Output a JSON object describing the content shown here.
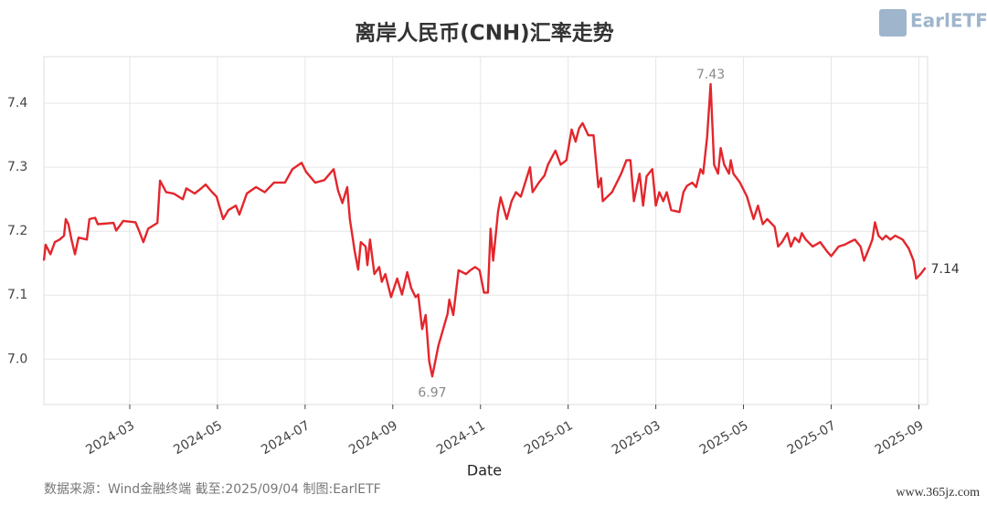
{
  "chart_data": {
    "type": "line",
    "title": "离岸人民币(CNH)汇率走势",
    "x_label": "Date",
    "footer": "数据来源：Wind金融终端 截至:2025/09/04 制图:EarlETF",
    "logo": "EarlETF",
    "watermark": "www.365jz.com",
    "color": "#e3262c",
    "grid": true,
    "xlim": [
      0.04,
      20.2
    ],
    "ylim": [
      6.929,
      7.473
    ],
    "xticks": [
      {
        "value": 2,
        "label": "2024-03"
      },
      {
        "value": 4,
        "label": "2024-05"
      },
      {
        "value": 6,
        "label": "2024-07"
      },
      {
        "value": 8,
        "label": "2024-09"
      },
      {
        "value": 10,
        "label": "2024-11"
      },
      {
        "value": 12,
        "label": "2025-01"
      },
      {
        "value": 14,
        "label": "2025-03"
      },
      {
        "value": 16,
        "label": "2025-05"
      },
      {
        "value": 18,
        "label": "2025-07"
      },
      {
        "value": 20,
        "label": "2025-09"
      }
    ],
    "yticks": [
      {
        "value": 7,
        "label": "7.0"
      },
      7.1,
      7.2,
      7.3,
      7.4
    ],
    "x": [
      0.04,
      0.08,
      0.19,
      0.29,
      0.4,
      0.5,
      0.54,
      0.6,
      0.67,
      0.75,
      0.83,
      1.02,
      1.08,
      1.21,
      1.27,
      1.63,
      1.69,
      1.85,
      2.13,
      2.21,
      2.31,
      2.42,
      2.63,
      2.69,
      2.83,
      3.0,
      3.21,
      3.29,
      3.48,
      3.63,
      3.73,
      3.88,
      3.98,
      4.13,
      4.25,
      4.42,
      4.5,
      4.67,
      4.88,
      5.08,
      5.29,
      5.54,
      5.71,
      5.92,
      6.02,
      6.23,
      6.44,
      6.65,
      6.75,
      6.85,
      6.96,
      7.02,
      7.13,
      7.21,
      7.27,
      7.38,
      7.42,
      7.48,
      7.58,
      7.69,
      7.75,
      7.83,
      7.96,
      8.1,
      8.21,
      8.33,
      8.42,
      8.52,
      8.58,
      8.67,
      8.75,
      8.83,
      8.9,
      9.04,
      9.25,
      9.29,
      9.38,
      9.5,
      9.67,
      9.77,
      9.88,
      9.98,
      10.08,
      10.17,
      10.23,
      10.29,
      10.4,
      10.46,
      10.6,
      10.71,
      10.81,
      10.92,
      11.02,
      11.13,
      11.19,
      11.33,
      11.46,
      11.54,
      11.71,
      11.83,
      11.96,
      12.08,
      12.17,
      12.25,
      12.33,
      12.46,
      12.58,
      12.69,
      12.75,
      12.79,
      13.0,
      13.21,
      13.33,
      13.42,
      13.5,
      13.63,
      13.71,
      13.79,
      13.92,
      14.0,
      14.08,
      14.17,
      14.25,
      14.35,
      14.54,
      14.63,
      14.71,
      14.83,
      14.92,
      15.02,
      15.08,
      15.17,
      15.25,
      15.33,
      15.42,
      15.48,
      15.56,
      15.67,
      15.71,
      15.77,
      15.92,
      16.08,
      16.23,
      16.33,
      16.44,
      16.54,
      16.71,
      16.79,
      16.88,
      17.0,
      17.08,
      17.17,
      17.27,
      17.33,
      17.42,
      17.58,
      17.75,
      17.9,
      18.0,
      18.17,
      18.31,
      18.42,
      18.54,
      18.67,
      18.75,
      18.88,
      18.94,
      19.0,
      19.08,
      19.17,
      19.25,
      19.35,
      19.46,
      19.63,
      19.77,
      19.88,
      19.94,
      20.04,
      20.15
    ],
    "values": [
      7.154,
      7.179,
      7.164,
      7.183,
      7.187,
      7.193,
      7.219,
      7.211,
      7.187,
      7.164,
      7.19,
      7.187,
      7.219,
      7.221,
      7.211,
      7.213,
      7.201,
      7.216,
      7.214,
      7.201,
      7.183,
      7.204,
      7.213,
      7.279,
      7.261,
      7.259,
      7.25,
      7.267,
      7.259,
      7.267,
      7.273,
      7.261,
      7.254,
      7.219,
      7.233,
      7.24,
      7.226,
      7.259,
      7.269,
      7.261,
      7.276,
      7.276,
      7.297,
      7.307,
      7.293,
      7.276,
      7.28,
      7.297,
      7.264,
      7.244,
      7.269,
      7.219,
      7.169,
      7.14,
      7.183,
      7.176,
      7.147,
      7.187,
      7.133,
      7.144,
      7.121,
      7.133,
      7.097,
      7.126,
      7.101,
      7.136,
      7.111,
      7.097,
      7.101,
      7.047,
      7.069,
      6.997,
      6.973,
      7.021,
      7.071,
      7.093,
      7.069,
      7.139,
      7.133,
      7.139,
      7.144,
      7.139,
      7.104,
      7.104,
      7.204,
      7.154,
      7.23,
      7.253,
      7.219,
      7.247,
      7.261,
      7.254,
      7.276,
      7.3,
      7.261,
      7.276,
      7.287,
      7.304,
      7.326,
      7.304,
      7.311,
      7.359,
      7.34,
      7.361,
      7.369,
      7.35,
      7.35,
      7.269,
      7.283,
      7.247,
      7.261,
      7.29,
      7.311,
      7.311,
      7.247,
      7.29,
      7.24,
      7.286,
      7.297,
      7.24,
      7.261,
      7.247,
      7.261,
      7.233,
      7.23,
      7.261,
      7.271,
      7.276,
      7.269,
      7.297,
      7.29,
      7.347,
      7.43,
      7.304,
      7.29,
      7.33,
      7.304,
      7.29,
      7.311,
      7.29,
      7.276,
      7.254,
      7.219,
      7.24,
      7.211,
      7.219,
      7.207,
      7.176,
      7.183,
      7.197,
      7.176,
      7.19,
      7.183,
      7.197,
      7.187,
      7.176,
      7.183,
      7.169,
      7.161,
      7.176,
      7.179,
      7.183,
      7.187,
      7.176,
      7.154,
      7.176,
      7.187,
      7.214,
      7.193,
      7.187,
      7.193,
      7.187,
      7.193,
      7.187,
      7.173,
      7.154,
      7.126,
      7.133,
      7.143
    ],
    "annotations": [
      {
        "x": 15.25,
        "y": 7.43,
        "position": "above"
      },
      {
        "x": 8.9,
        "y": 6.97,
        "position": "below"
      },
      {
        "x": 20.15,
        "y": 7.14,
        "position": "right"
      }
    ]
  }
}
